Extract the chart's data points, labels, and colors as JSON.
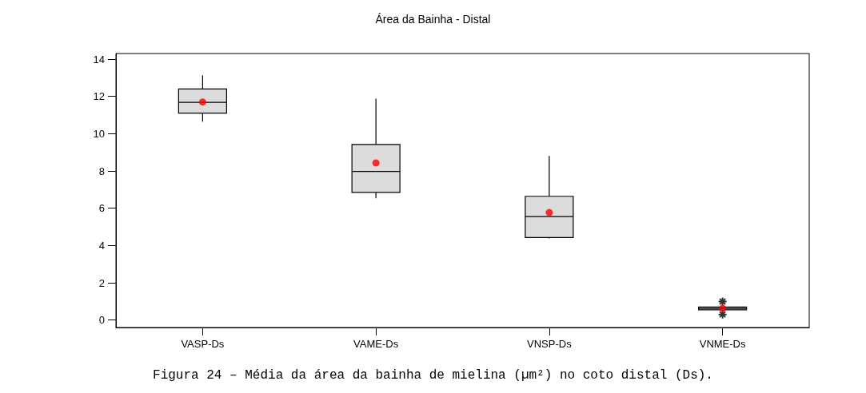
{
  "chart_data": {
    "type": "box",
    "title": "Área da Bainha - Distal",
    "categories": [
      "VASP-Ds",
      "VAME-Ds",
      "VNSP-Ds",
      "VNME-Ds"
    ],
    "boxes": [
      {
        "low": 10.65,
        "q1": 11.1,
        "median": 11.68,
        "q3": 12.4,
        "high": 13.13,
        "mean": 11.7
      },
      {
        "low": 6.53,
        "q1": 6.85,
        "median": 7.97,
        "q3": 9.42,
        "high": 11.88,
        "mean": 8.43
      },
      {
        "low": 4.38,
        "q1": 4.43,
        "median": 5.55,
        "q3": 6.64,
        "high": 8.8,
        "mean": 5.77
      },
      {
        "low": 0.55,
        "q1": 0.55,
        "median": 0.62,
        "q3": 0.7,
        "high": 0.7,
        "mean": 0.63,
        "outliers": [
          0.99,
          0.3
        ]
      }
    ],
    "color": "#dcdcdc",
    "ylim": [
      -0.4,
      14.3
    ],
    "yticks": [
      0,
      2,
      4,
      6,
      8,
      10,
      12,
      14
    ],
    "annotations": [
      "Figura 24 – Média da área da bainha de mielina (µm²) no coto distal (Ds)."
    ]
  }
}
